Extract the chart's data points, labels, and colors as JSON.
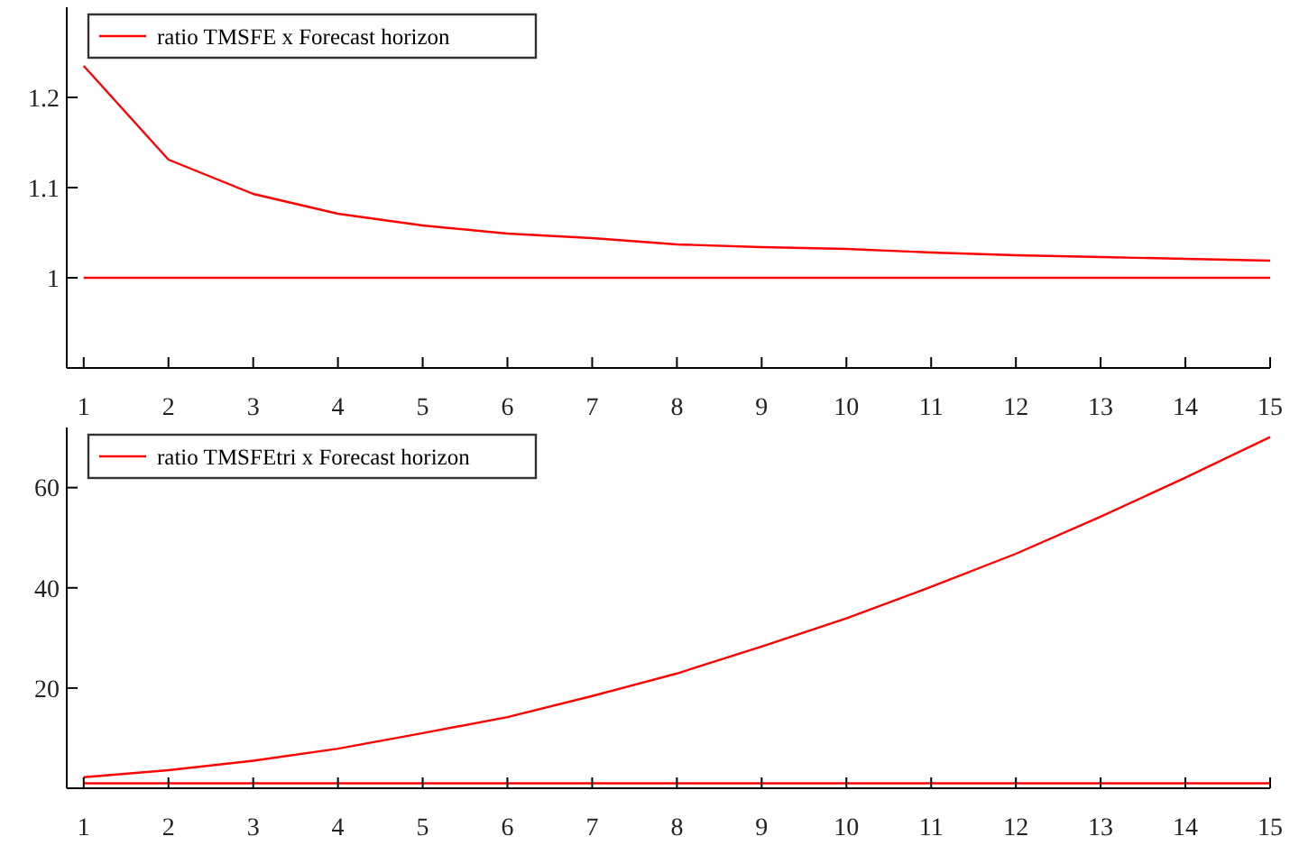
{
  "chart_data": [
    {
      "type": "line",
      "x": [
        1,
        2,
        3,
        4,
        5,
        6,
        7,
        8,
        9,
        10,
        11,
        12,
        13,
        14,
        15
      ],
      "series": [
        {
          "name": "ratio TMSFE x Forecast horizon",
          "color": "#ff0000",
          "values": [
            1.235,
            1.131,
            1.093,
            1.071,
            1.058,
            1.049,
            1.044,
            1.037,
            1.034,
            1.032,
            1.028,
            1.025,
            1.023,
            1.021,
            1.019
          ]
        }
      ],
      "xlim": [
        0.8,
        15
      ],
      "xticks": [
        1,
        2,
        3,
        4,
        5,
        6,
        7,
        8,
        9,
        10,
        11,
        12,
        13,
        14,
        15
      ],
      "ylim": [
        0.9,
        1.3
      ],
      "yticks": [
        1,
        1.1,
        1.2
      ],
      "ref_lines": [
        {
          "axis": "y",
          "value": 1,
          "color": "#ff0000"
        }
      ],
      "legend": "top left"
    },
    {
      "type": "line",
      "x": [
        1,
        2,
        3,
        4,
        5,
        6,
        7,
        8,
        9,
        10,
        11,
        12,
        13,
        14,
        15
      ],
      "series": [
        {
          "name": "ratio TMSFEtri x Forecast horizon",
          "color": "#ff0000",
          "values": [
            2.2,
            3.6,
            5.5,
            7.9,
            11.0,
            14.2,
            18.4,
            22.9,
            28.3,
            33.9,
            40.2,
            46.8,
            54.2,
            62.0,
            70.1
          ]
        }
      ],
      "xlim": [
        0.8,
        15
      ],
      "xticks": [
        1,
        2,
        3,
        4,
        5,
        6,
        7,
        8,
        9,
        10,
        11,
        12,
        13,
        14,
        15
      ],
      "ylim": [
        0,
        72
      ],
      "yticks": [
        20,
        40,
        60
      ],
      "ref_lines": [
        {
          "axis": "y",
          "value": 1,
          "color": "#ff0000"
        }
      ],
      "legend": "top left"
    }
  ]
}
